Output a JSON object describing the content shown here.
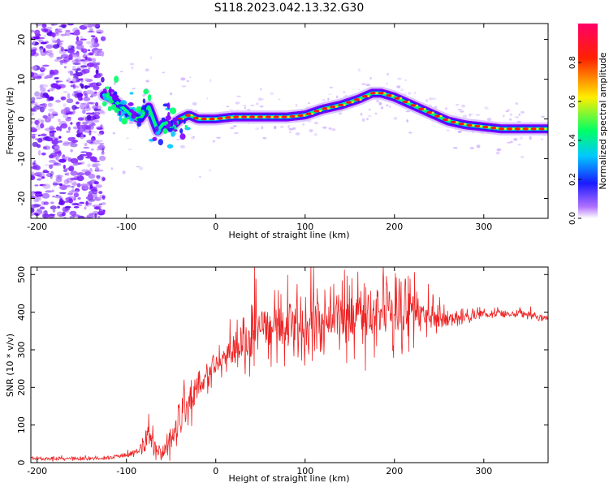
{
  "title": "S118.2023.042.13.32.G30",
  "colors": {
    "snr_line": "#ee2222",
    "ridge_cmap": [
      "#7e00ff",
      "#1a1aff",
      "#00c8ff",
      "#00ff66",
      "#ffee00",
      "#ff2200",
      "#ff0066"
    ]
  },
  "chart_data": [
    {
      "type": "heatmap",
      "panel": "spectrogram",
      "xlabel": "Height of straight line (km)",
      "ylabel": "Frequency (Hz)",
      "xlim": [
        -207,
        372
      ],
      "ylim": [
        -25,
        24
      ],
      "x_ticks": [
        -200,
        -100,
        0,
        100,
        200,
        300
      ],
      "y_ticks": [
        -20,
        -10,
        0,
        10,
        20
      ],
      "grid": false,
      "colorbar": {
        "label": "Normalized spectral amplitude",
        "range": [
          0,
          1
        ],
        "ticks": [
          "0.0",
          "0.2",
          "0.4",
          "0.6",
          "0.8"
        ],
        "colormap": "hsv-like (purple-blue-cyan-green-yellow-red-magenta)"
      },
      "ridge": {
        "x": [
          -125,
          -115,
          -105,
          -95,
          -85,
          -75,
          -65,
          -58,
          -50,
          -40,
          -30,
          -20,
          -10,
          0,
          20,
          40,
          60,
          80,
          100,
          120,
          140,
          160,
          175,
          185,
          200,
          220,
          240,
          260,
          280,
          300,
          320,
          340,
          372
        ],
        "y": [
          6,
          5,
          3,
          1,
          0,
          3,
          -3,
          -1,
          -2,
          0,
          1,
          0,
          0,
          0,
          0.5,
          0.5,
          0.5,
          0.5,
          1,
          2.5,
          3.5,
          5,
          6.5,
          6.5,
          5.5,
          3.5,
          1.5,
          -0.5,
          -1.5,
          -2,
          -2.5,
          -2.5,
          -2.5
        ]
      },
      "noise_region": {
        "x_range": [
          -207,
          -125
        ],
        "y_range": [
          -25,
          24
        ]
      }
    },
    {
      "type": "line",
      "panel": "snr",
      "xlabel": "Height of straight line (km)",
      "ylabel": "SNR (10 * v/v)",
      "xlim": [
        -207,
        372
      ],
      "ylim": [
        0,
        520
      ],
      "x_ticks": [
        -200,
        -100,
        0,
        100,
        200,
        300
      ],
      "y_ticks": [
        0,
        100,
        200,
        300,
        400,
        500
      ],
      "grid": false,
      "series": [
        {
          "color": "#ee2222",
          "x": [
            -207,
            -180,
            -150,
            -120,
            -100,
            -85,
            -75,
            -70,
            -60,
            -50,
            -40,
            -30,
            -20,
            -10,
            0,
            20,
            40,
            60,
            80,
            100,
            120,
            140,
            160,
            180,
            200,
            220,
            240,
            260,
            280,
            300,
            320,
            340,
            360,
            372
          ],
          "y": [
            10,
            10,
            10,
            12,
            20,
            30,
            70,
            40,
            30,
            60,
            120,
            160,
            200,
            230,
            260,
            300,
            330,
            350,
            360,
            370,
            380,
            380,
            385,
            395,
            395,
            400,
            390,
            385,
            390,
            395,
            395,
            395,
            390,
            380
          ],
          "noise_amplitude": [
            4,
            4,
            4,
            5,
            8,
            15,
            30,
            25,
            20,
            35,
            60,
            60,
            50,
            40,
            35,
            55,
            70,
            80,
            85,
            85,
            90,
            90,
            90,
            85,
            80,
            75,
            55,
            25,
            15,
            10,
            10,
            10,
            10,
            10
          ]
        }
      ]
    }
  ]
}
